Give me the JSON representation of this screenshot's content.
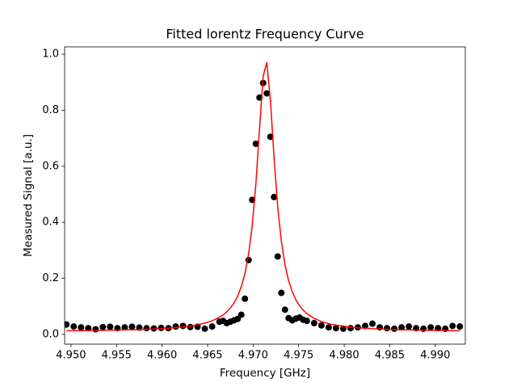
{
  "chart_data": {
    "type": "scatter",
    "title": "Fitted lorentz Frequency Curve",
    "x_label": "Frequency [GHz]",
    "y_label": "Measured Signal [a.u.]",
    "x": [
      4.9495,
      4.9503,
      4.9511,
      4.9519,
      4.9527,
      4.9535,
      4.9543,
      4.9551,
      4.9559,
      4.9567,
      4.9575,
      4.9583,
      4.9591,
      4.9599,
      4.9607,
      4.9615,
      4.9623,
      4.9631,
      4.9639,
      4.9647,
      4.9655,
      4.9663,
      4.9667,
      4.9671,
      4.9675,
      4.9679,
      4.9683,
      4.9687,
      4.9691,
      4.9695,
      4.9699,
      4.9703,
      4.9707,
      4.9711,
      4.9715,
      4.9719,
      4.9723,
      4.9727,
      4.9731,
      4.9735,
      4.9739,
      4.9743,
      4.9747,
      4.9751,
      4.9755,
      4.9759,
      4.9767,
      4.9775,
      4.9783,
      4.9791,
      4.9799,
      4.9807,
      4.9815,
      4.9823,
      4.9831,
      4.9839,
      4.9847,
      4.9855,
      4.9863,
      4.9871,
      4.9879,
      4.9887,
      4.9895,
      4.9903,
      4.9911,
      4.9919,
      4.9927
    ],
    "series": [
      {
        "kind": "scatter",
        "color": "#000000",
        "values": [
          0.035,
          0.028,
          0.025,
          0.022,
          0.018,
          0.026,
          0.027,
          0.022,
          0.025,
          0.027,
          0.024,
          0.022,
          0.021,
          0.023,
          0.022,
          0.028,
          0.03,
          0.026,
          0.027,
          0.02,
          0.028,
          0.045,
          0.048,
          0.04,
          0.045,
          0.05,
          0.055,
          0.07,
          0.127,
          0.265,
          0.48,
          0.68,
          0.845,
          0.897,
          0.86,
          0.705,
          0.49,
          0.278,
          0.148,
          0.088,
          0.058,
          0.05,
          0.056,
          0.06,
          0.052,
          0.048,
          0.04,
          0.032,
          0.025,
          0.022,
          0.02,
          0.022,
          0.025,
          0.03,
          0.038,
          0.025,
          0.022,
          0.02,
          0.025,
          0.028,
          0.022,
          0.02,
          0.025,
          0.022,
          0.02,
          0.03,
          0.028
        ]
      },
      {
        "kind": "line",
        "color": "#ff0000",
        "values": [
          0.013,
          0.013,
          0.013,
          0.014,
          0.014,
          0.014,
          0.015,
          0.015,
          0.016,
          0.016,
          0.017,
          0.018,
          0.019,
          0.02,
          0.022,
          0.024,
          0.027,
          0.03,
          0.034,
          0.04,
          0.048,
          0.061,
          0.069,
          0.08,
          0.094,
          0.112,
          0.136,
          0.17,
          0.217,
          0.286,
          0.388,
          0.536,
          0.732,
          0.921,
          0.971,
          0.835,
          0.63,
          0.455,
          0.332,
          0.248,
          0.191,
          0.152,
          0.123,
          0.102,
          0.086,
          0.074,
          0.057,
          0.046,
          0.038,
          0.033,
          0.029,
          0.026,
          0.023,
          0.022,
          0.02,
          0.019,
          0.018,
          0.017,
          0.016,
          0.016,
          0.015,
          0.015,
          0.014,
          0.014,
          0.014,
          0.013,
          0.013
        ]
      }
    ],
    "xlim": [
      4.9493,
      4.9933
    ],
    "xticks": [
      {
        "value": 4.95,
        "label": "4.950"
      },
      {
        "value": 4.955,
        "label": "4.955"
      },
      {
        "value": 4.96,
        "label": "4.960"
      },
      {
        "value": 4.965,
        "label": "4.965"
      },
      {
        "value": 4.97,
        "label": "4.970"
      },
      {
        "value": 4.975,
        "label": "4.975"
      },
      {
        "value": 4.98,
        "label": "4.980"
      },
      {
        "value": 4.985,
        "label": "4.985"
      },
      {
        "value": 4.99,
        "label": "4.990"
      }
    ],
    "ylim": [
      -0.035,
      1.026
    ],
    "yticks": [
      {
        "value": 0,
        "label": "0.0"
      },
      0.2,
      0.4,
      0.6,
      0.8,
      {
        "value": 1,
        "label": "1.0"
      }
    ],
    "grid": false
  }
}
